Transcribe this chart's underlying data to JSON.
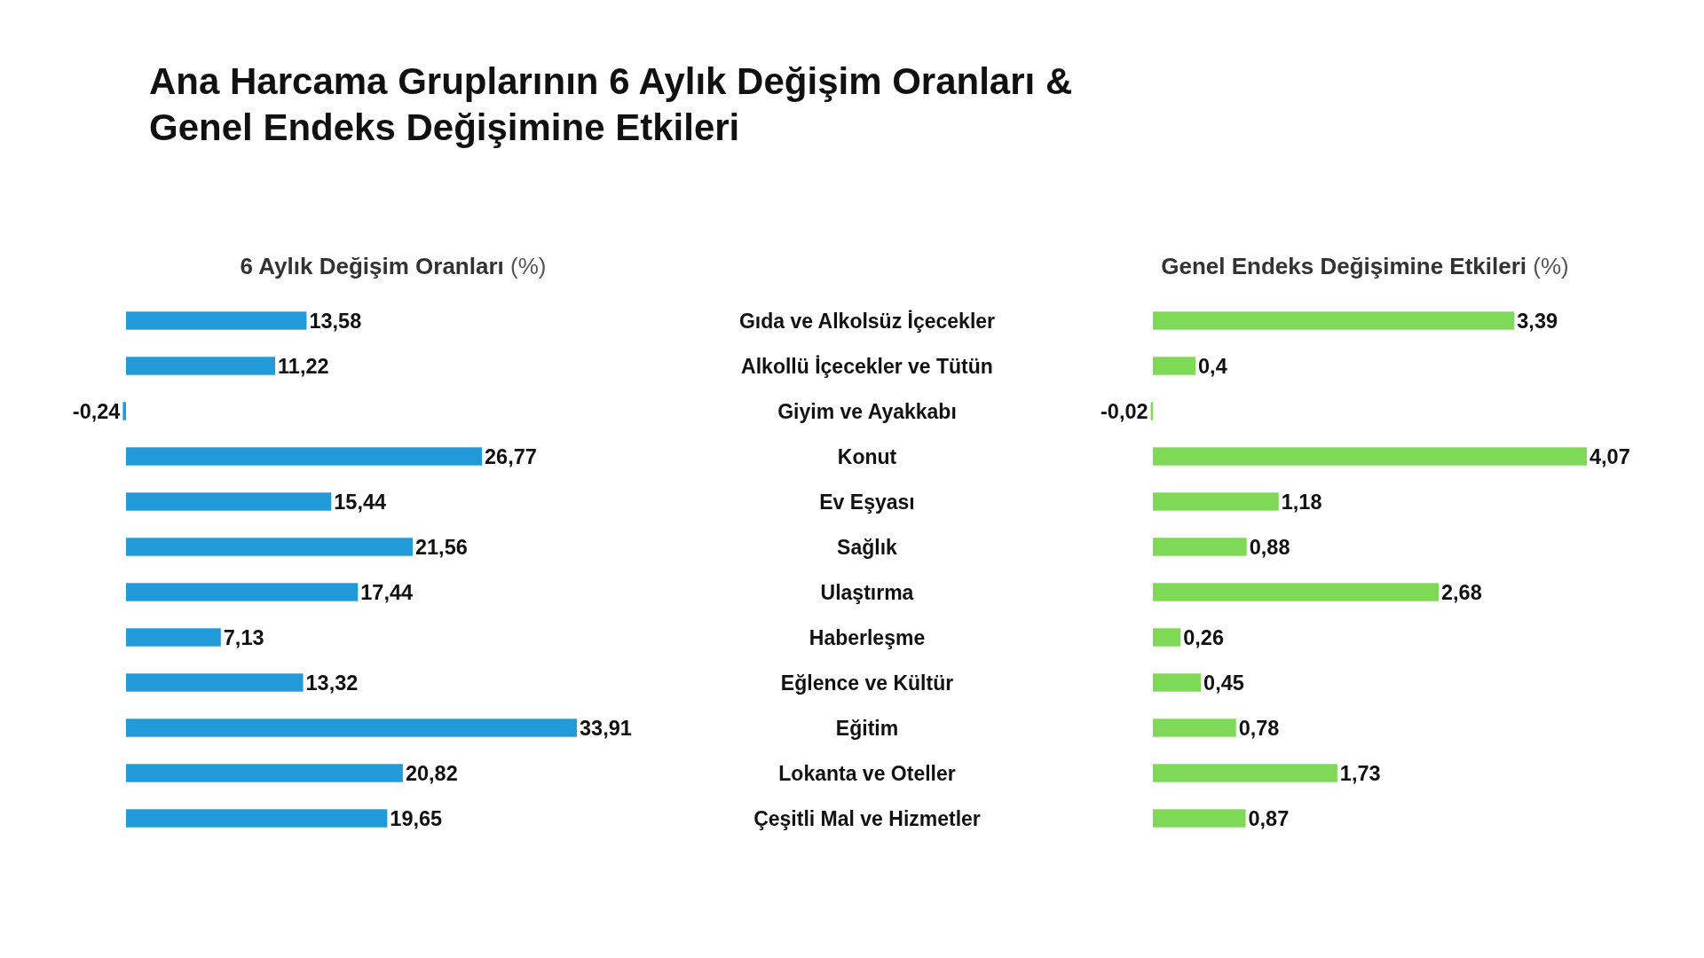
{
  "chart_data": [
    {
      "type": "bar",
      "orientation": "horizontal",
      "title": "Ana Harcama Gruplarının 6 Aylık Değişim Oranları &\nGenel Endeks Değişimine Etkileri",
      "xlabel": "6 Aylık Değişim Oranları (%)",
      "categories": [
        "Gıda ve Alkolsüz İçecekler",
        "Alkollü İçecekler ve Tütün",
        "Giyim ve Ayakkabı",
        "Konut",
        "Ev Eşyası",
        "Sağlık",
        "Ulaştırma",
        "Haberleşme",
        "Eğlence ve Kültür",
        "Eğitim",
        "Lokanta ve Oteller",
        "Çeşitli Mal ve Hizmetler"
      ],
      "values": [
        13.58,
        11.22,
        -0.24,
        26.77,
        15.44,
        21.56,
        17.44,
        7.13,
        13.32,
        33.91,
        20.82,
        19.65
      ],
      "value_labels": [
        "13,58",
        "11,22",
        "-0,24",
        "26,77",
        "15,44",
        "21,56",
        "17,44",
        "7,13",
        "13,32",
        "33,91",
        "20,82",
        "19,65"
      ],
      "color": "#2299d8"
    },
    {
      "type": "bar",
      "orientation": "horizontal",
      "xlabel": "Genel Endeks Değişimine Etkileri (%)",
      "categories": [
        null,
        null,
        null,
        null,
        null,
        null,
        null,
        null,
        null,
        null,
        null,
        null
      ],
      "values": [
        3.39,
        0.4,
        -0.02,
        4.07,
        1.18,
        0.88,
        2.68,
        0.26,
        0.45,
        0.78,
        1.73,
        0.87
      ],
      "value_labels": [
        "3,39",
        "0,4",
        "-0,02",
        "4,07",
        "1,18",
        "0,88",
        "2,68",
        "0,26",
        "0,45",
        "0,78",
        "1,73",
        "0,87"
      ],
      "color": "#7ed957"
    }
  ]
}
